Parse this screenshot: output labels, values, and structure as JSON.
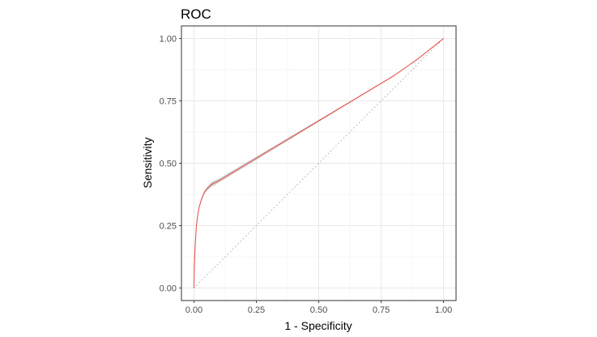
{
  "chart_data": {
    "type": "line",
    "title": "ROC",
    "xlabel": "1 - Specificity",
    "ylabel": "Sensitivity",
    "xlim": [
      0,
      1
    ],
    "ylim": [
      0,
      1
    ],
    "x_ticks": [
      0.0,
      0.25,
      0.5,
      0.75,
      1.0
    ],
    "y_ticks": [
      0.0,
      0.25,
      0.5,
      0.75,
      1.0
    ],
    "x_tick_labels": [
      "0.00",
      "0.25",
      "0.50",
      "0.75",
      "1.00"
    ],
    "y_tick_labels": [
      "0.00",
      "0.25",
      "0.50",
      "0.75",
      "1.00"
    ],
    "grid": true,
    "legend": "none",
    "reference_line": {
      "x": [
        0,
        1
      ],
      "y": [
        0,
        1
      ],
      "style": "dotted",
      "color": "#999999"
    },
    "series": [
      {
        "color": "#e8554e",
        "band_color": "#b3b3b3",
        "x": [
          0.0,
          0.002,
          0.005,
          0.01,
          0.015,
          0.02,
          0.03,
          0.04,
          0.05,
          0.06,
          0.07,
          0.08,
          0.1,
          0.2,
          0.3,
          0.4,
          0.5,
          0.6,
          0.7,
          0.8,
          0.9,
          1.0
        ],
        "y": [
          0.0,
          0.1,
          0.17,
          0.25,
          0.29,
          0.32,
          0.355,
          0.38,
          0.395,
          0.405,
          0.415,
          0.42,
          0.43,
          0.49,
          0.55,
          0.61,
          0.67,
          0.73,
          0.79,
          0.85,
          0.92,
          1.0
        ],
        "ci_lower": [
          0.0,
          0.095,
          0.165,
          0.245,
          0.285,
          0.315,
          0.35,
          0.373,
          0.388,
          0.397,
          0.405,
          0.41,
          0.422,
          0.483,
          0.544,
          0.605,
          0.666,
          0.727,
          0.788,
          0.849,
          0.919,
          1.0
        ],
        "ci_upper": [
          0.0,
          0.105,
          0.175,
          0.255,
          0.295,
          0.325,
          0.36,
          0.387,
          0.402,
          0.413,
          0.425,
          0.43,
          0.438,
          0.497,
          0.556,
          0.615,
          0.674,
          0.733,
          0.792,
          0.851,
          0.921,
          1.0
        ]
      }
    ]
  }
}
